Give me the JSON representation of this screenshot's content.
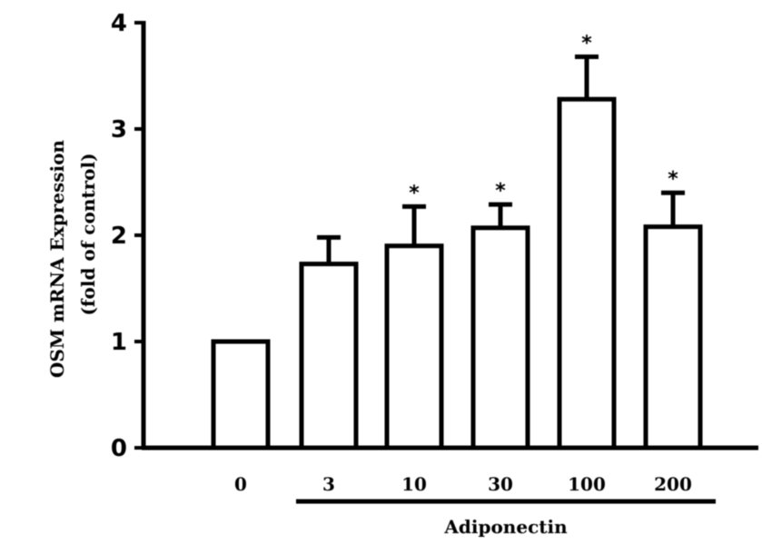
{
  "chart_data": {
    "type": "bar",
    "categories": [
      "0",
      "3",
      "10",
      "30",
      "100",
      "200"
    ],
    "values": [
      1.0,
      1.73,
      1.9,
      2.07,
      3.28,
      2.08
    ],
    "errors": [
      0,
      0.25,
      0.37,
      0.22,
      0.4,
      0.32
    ],
    "significance": [
      "",
      "",
      "*",
      "*",
      "*",
      "*"
    ],
    "ylabel_line1": "OSM mRNA Expression",
    "ylabel_line2": "(fold of control)",
    "group_label": "Adiponectin",
    "ylim": [
      0,
      4
    ],
    "yticks": [
      "0",
      "1",
      "2",
      "3",
      "4"
    ],
    "legend": "none",
    "grid": false,
    "colors": {
      "bar_fill": "#ffffff",
      "stroke": "#000000"
    }
  }
}
